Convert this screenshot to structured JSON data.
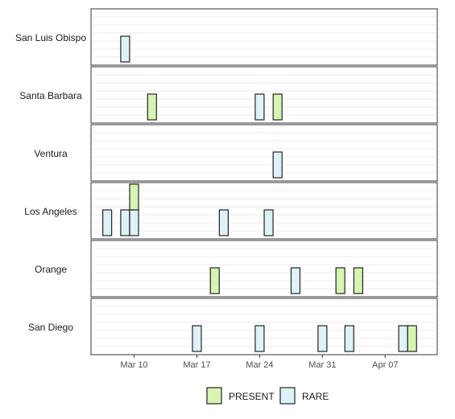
{
  "chart_data": {
    "type": "timeline-facets",
    "title": "",
    "xlabel": "",
    "ylabel": "",
    "x_ticks": [
      {
        "label": "Mar 10",
        "date": "2022-03-10"
      },
      {
        "label": "Mar 17",
        "date": "2022-03-17"
      },
      {
        "label": "Mar 24",
        "date": "2022-03-24"
      },
      {
        "label": "Mar 31",
        "date": "2022-03-31"
      },
      {
        "label": "Apr 07",
        "date": "2022-04-07"
      }
    ],
    "x_range": [
      "2022-03-06",
      "2022-04-12"
    ],
    "grid": true,
    "legend_position": "bottom",
    "legend": [
      {
        "name": "PRESENT",
        "color": "#d7f5b2"
      },
      {
        "name": "RARE",
        "color": "#ddf3f9"
      }
    ],
    "facets": [
      {
        "name": "San Luis Obispo",
        "events": [
          {
            "date": "2022-03-09",
            "status": "RARE",
            "stack": 0
          }
        ]
      },
      {
        "name": "Santa Barbara",
        "events": [
          {
            "date": "2022-03-12",
            "status": "PRESENT",
            "stack": 0
          },
          {
            "date": "2022-03-24",
            "status": "RARE",
            "stack": 0
          },
          {
            "date": "2022-03-26",
            "status": "PRESENT",
            "stack": 0
          }
        ]
      },
      {
        "name": "Ventura",
        "events": [
          {
            "date": "2022-03-26",
            "status": "RARE",
            "stack": 0
          }
        ]
      },
      {
        "name": "Los Angeles",
        "events": [
          {
            "date": "2022-03-07",
            "status": "RARE",
            "stack": 0
          },
          {
            "date": "2022-03-09",
            "status": "RARE",
            "stack": 0
          },
          {
            "date": "2022-03-10",
            "status": "RARE",
            "stack": 0
          },
          {
            "date": "2022-03-10",
            "status": "PRESENT",
            "stack": 1
          },
          {
            "date": "2022-03-20",
            "status": "RARE",
            "stack": 0
          },
          {
            "date": "2022-03-25",
            "status": "RARE",
            "stack": 0
          }
        ]
      },
      {
        "name": "Orange",
        "events": [
          {
            "date": "2022-03-19",
            "status": "PRESENT",
            "stack": 0
          },
          {
            "date": "2022-03-28",
            "status": "RARE",
            "stack": 0
          },
          {
            "date": "2022-04-02",
            "status": "PRESENT",
            "stack": 0
          },
          {
            "date": "2022-04-04",
            "status": "PRESENT",
            "stack": 0
          }
        ]
      },
      {
        "name": "San Diego",
        "events": [
          {
            "date": "2022-03-17",
            "status": "RARE",
            "stack": 0
          },
          {
            "date": "2022-03-24",
            "status": "RARE",
            "stack": 0
          },
          {
            "date": "2022-03-31",
            "status": "RARE",
            "stack": 0
          },
          {
            "date": "2022-04-03",
            "status": "RARE",
            "stack": 0
          },
          {
            "date": "2022-04-09",
            "status": "RARE",
            "stack": 0
          },
          {
            "date": "2022-04-10",
            "status": "PRESENT",
            "stack": 0
          }
        ]
      }
    ]
  }
}
